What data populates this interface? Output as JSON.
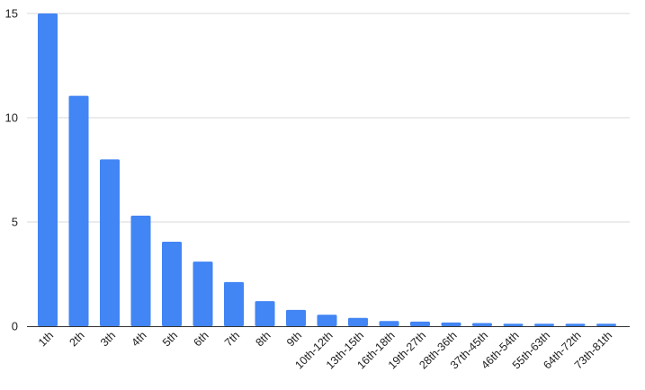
{
  "chart_data": {
    "type": "bar",
    "categories": [
      "1th",
      "2th",
      "3th",
      "4th",
      "5th",
      "6th",
      "7th",
      "8th",
      "9th",
      "10th-12th",
      "13th-15th",
      "16th-18th",
      "19th-27th",
      "28th-36th",
      "37th-45th",
      "46th-54th",
      "55th-63th",
      "64th-72th",
      "73th-81th"
    ],
    "values": [
      15,
      11.05,
      8,
      5.3,
      4.05,
      3.1,
      2.12,
      1.2,
      0.78,
      0.55,
      0.4,
      0.25,
      0.22,
      0.18,
      0.15,
      0.12,
      0.12,
      0.12,
      0.12
    ],
    "title": "",
    "xlabel": "",
    "ylabel": "",
    "ylim": [
      0,
      15
    ],
    "yticks": [
      0,
      5,
      10,
      15
    ],
    "grid": true,
    "legend": "none",
    "colors": {
      "bar": "#4285f4",
      "grid": "#d9d9d9",
      "axis": "#333333",
      "text": "#222222"
    }
  }
}
